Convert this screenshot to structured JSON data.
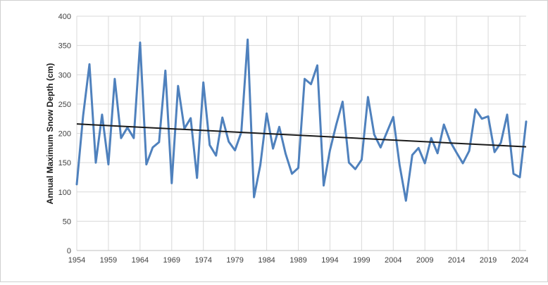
{
  "chart_data": {
    "type": "line",
    "title": "",
    "xlabel": "",
    "ylabel": "Annual Maximum Snow Depth (cm)",
    "xlim": [
      1954,
      2025
    ],
    "ylim": [
      0,
      400
    ],
    "yticks": [
      0,
      50,
      100,
      150,
      200,
      250,
      300,
      350,
      400
    ],
    "xticks": [
      1954,
      1959,
      1964,
      1969,
      1974,
      1979,
      1984,
      1989,
      1994,
      1999,
      2004,
      2009,
      2014,
      2019,
      2024
    ],
    "grid": "vertical and horizontal",
    "legend": "none",
    "series": [
      {
        "color": "#4f81bd",
        "x": [
          1954,
          1955,
          1956,
          1957,
          1958,
          1959,
          1960,
          1961,
          1962,
          1963,
          1964,
          1965,
          1966,
          1967,
          1968,
          1969,
          1970,
          1971,
          1972,
          1973,
          1974,
          1975,
          1976,
          1977,
          1978,
          1979,
          1980,
          1981,
          1982,
          1983,
          1984,
          1985,
          1986,
          1987,
          1988,
          1989,
          1990,
          1991,
          1992,
          1993,
          1994,
          1995,
          1996,
          1997,
          1998,
          1999,
          2000,
          2001,
          2002,
          2003,
          2004,
          2005,
          2006,
          2007,
          2008,
          2009,
          2010,
          2011,
          2012,
          2013,
          2014,
          2015,
          2016,
          2017,
          2018,
          2019,
          2020,
          2021,
          2022,
          2023,
          2024,
          2025
        ],
        "values": [
          113,
          230,
          318,
          150,
          232,
          147,
          293,
          192,
          210,
          192,
          355,
          147,
          176,
          185,
          307,
          115,
          281,
          208,
          226,
          124,
          287,
          180,
          162,
          227,
          186,
          171,
          202,
          360,
          91,
          146,
          234,
          174,
          211,
          165,
          131,
          141,
          293,
          284,
          316,
          111,
          171,
          215,
          254,
          150,
          139,
          155,
          262,
          198,
          176,
          202,
          228,
          146,
          85,
          163,
          175,
          149,
          192,
          166,
          215,
          186,
          167,
          149,
          170,
          241,
          225,
          229,
          168,
          184,
          232,
          131,
          125,
          220
        ]
      }
    ],
    "trendline": {
      "color": "#1a1a1a",
      "x": [
        1954,
        2025
      ],
      "values": [
        216,
        177
      ]
    }
  }
}
